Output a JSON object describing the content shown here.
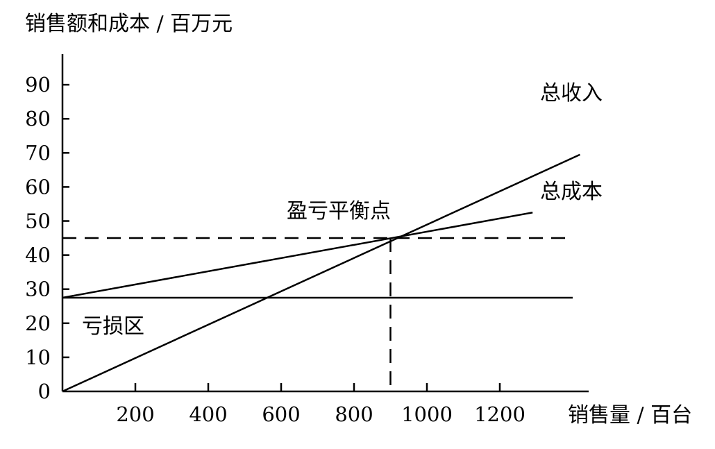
{
  "chart_data": {
    "type": "line",
    "ylabel": "销售额和成本 / 百万元",
    "xlabel": "销售量 / 百台",
    "x_ticks": [
      200,
      400,
      600,
      800,
      1000,
      1200
    ],
    "y_ticks": [
      0,
      10,
      20,
      30,
      40,
      50,
      60,
      70,
      80,
      90
    ],
    "xlim": [
      0,
      1440
    ],
    "ylim": [
      0,
      100
    ],
    "grid": false,
    "series": [
      {
        "name": "总收入",
        "x": [
          0,
          1420
        ],
        "y": [
          0,
          69.5
        ]
      },
      {
        "name": "总成本",
        "x": [
          0,
          1290
        ],
        "y": [
          27.5,
          52.5
        ]
      },
      {
        "name": "",
        "x": [
          0,
          1400
        ],
        "y": [
          27.5,
          27.5
        ]
      }
    ],
    "reference_lines": {
      "horizontal_dashed_y": 45,
      "vertical_dashed_x": 900
    },
    "annotations": {
      "total_revenue": "总收入",
      "total_cost": "总成本",
      "break_even": "盈亏平衡点",
      "loss_zone": "亏损区"
    }
  }
}
